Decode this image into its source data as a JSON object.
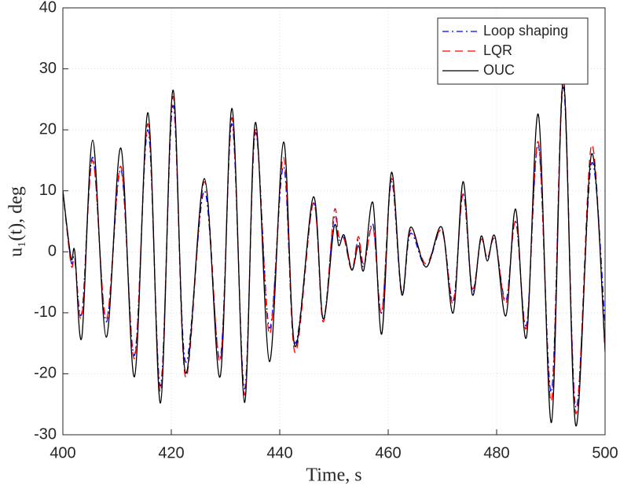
{
  "chart_data": {
    "type": "line",
    "xlabel": "Time, s",
    "ylabel": "u₁(t), deg",
    "x": [
      400,
      401.5,
      402.2,
      403.5,
      405.5,
      408,
      410.7,
      413.2,
      415.7,
      418,
      420.3,
      422.6,
      426.1,
      429,
      431.2,
      433.5,
      435.5,
      438.1,
      440.7,
      442.8,
      446.2,
      448,
      450,
      450.9,
      451.9,
      453.3,
      454.5,
      455.5,
      457.2,
      458.8,
      460.6,
      462.5,
      464.1,
      467,
      469.9,
      472,
      473.8,
      475.5,
      477.1,
      478.3,
      479.7,
      481.7,
      483.5,
      485.5,
      487.7,
      490.1,
      492.3,
      494.6,
      497.5,
      500
    ],
    "series": [
      {
        "name": "Loop shaping",
        "color": "#0000ff",
        "style": "dashdot",
        "values": [
          10,
          -1.5,
          -1,
          -10,
          15.5,
          -11.5,
          13.5,
          -17,
          20,
          -22,
          24,
          -18,
          10,
          -17.5,
          21,
          -22.5,
          19.5,
          -12.5,
          14,
          -15,
          8,
          -11,
          5.5,
          2,
          2.2,
          -3,
          2,
          -2.5,
          4.5,
          -10,
          11.5,
          -7,
          3,
          -2.5,
          3.5,
          -8,
          9.5,
          -6.5,
          2,
          -1,
          2,
          -8,
          5,
          -12,
          17.5,
          -23,
          27,
          -25.5,
          14.5,
          -12
        ]
      },
      {
        "name": "LQR",
        "color": "#ff0000",
        "style": "dashed",
        "values": [
          10,
          -2,
          -1.5,
          -10.5,
          15,
          -11,
          14,
          -17.5,
          21,
          -23,
          25.5,
          -20.5,
          11.5,
          -18,
          22,
          -23.5,
          20,
          -13.5,
          15.5,
          -16.5,
          8,
          -11.5,
          6.5,
          2.5,
          2,
          -3,
          2.5,
          -2,
          4,
          -10,
          12,
          -6.5,
          3.5,
          -2,
          3.5,
          -8.5,
          9.5,
          -6,
          2,
          -1,
          2,
          -8.5,
          5,
          -12.5,
          18,
          -24.5,
          28.5,
          -26.5,
          17.5,
          -16.5
        ]
      },
      {
        "name": "OUC",
        "color": "#000000",
        "style": "solid",
        "values": [
          10,
          -1,
          0,
          -14,
          18.3,
          -14,
          17,
          -20.5,
          22.8,
          -24.8,
          26.5,
          -19.8,
          12,
          -20.5,
          23.5,
          -24.7,
          21.2,
          -18,
          18,
          -15.5,
          9,
          -11,
          4,
          1,
          2.7,
          -3,
          1,
          -3,
          8,
          -13.5,
          13,
          -7,
          4,
          -2.5,
          4,
          -10,
          11.5,
          -7,
          2.5,
          -1.5,
          2.5,
          -10.5,
          7,
          -14,
          22.5,
          -28,
          28,
          -28.5,
          16,
          -16
        ]
      }
    ],
    "xlim": [
      400,
      500
    ],
    "xticks": [
      400,
      420,
      440,
      460,
      480,
      500
    ],
    "ylim": [
      -30,
      40
    ],
    "yticks": [
      -30,
      -20,
      -10,
      0,
      10,
      20,
      30,
      40
    ],
    "grid": true,
    "legend": "top-right"
  }
}
